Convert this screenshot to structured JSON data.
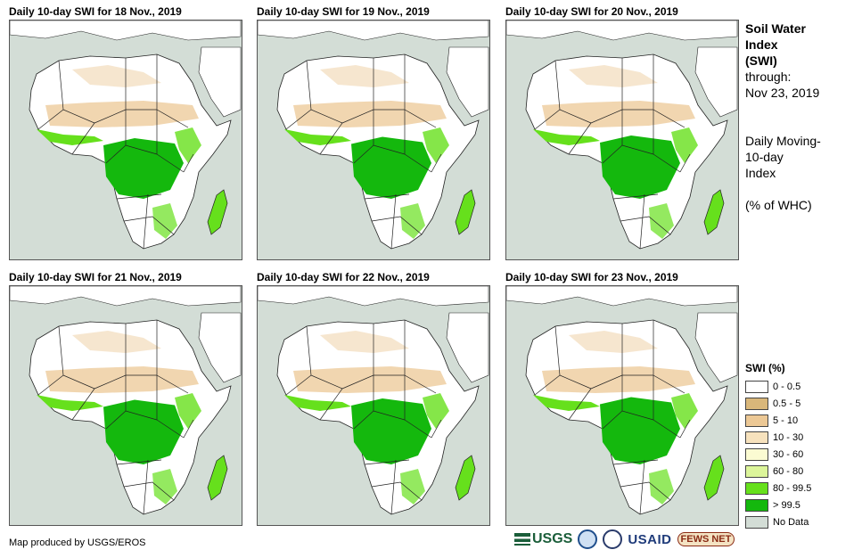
{
  "panels": [
    {
      "title": "Daily 10-day SWI for 18 Nov., 2019"
    },
    {
      "title": "Daily 10-day SWI for 19 Nov., 2019"
    },
    {
      "title": "Daily 10-day SWI for 20 Nov., 2019"
    },
    {
      "title": "Daily 10-day SWI for 21 Nov., 2019"
    },
    {
      "title": "Daily 10-day SWI for 22 Nov., 2019"
    },
    {
      "title": "Daily 10-day SWI for 23 Nov., 2019"
    }
  ],
  "side": {
    "title_line1": "Soil Water",
    "title_line2": "Index",
    "title_line3": "(SWI)",
    "through_label": "through:",
    "through_date": "Nov 23, 2019",
    "desc_line1": "Daily Moving-",
    "desc_line2": "10-day",
    "desc_line3": "Index",
    "units": "(% of WHC)"
  },
  "legend": {
    "title": "SWI (%)",
    "items": [
      {
        "label": "0 - 0.5",
        "color": "#ffffff"
      },
      {
        "label": "0.5 - 5",
        "color": "#d9b77a"
      },
      {
        "label": "5 - 10",
        "color": "#ecc895"
      },
      {
        "label": "10 - 30",
        "color": "#f7e2bd"
      },
      {
        "label": "30 - 60",
        "color": "#fbfbd2"
      },
      {
        "label": "60 - 80",
        "color": "#dcf59a"
      },
      {
        "label": "80 - 99.5",
        "color": "#66e01c"
      },
      {
        "label": "> 99.5",
        "color": "#14b80d"
      },
      {
        "label": "No Data",
        "color": "#d3ddd6"
      }
    ]
  },
  "credit": "Map produced by USGS/EROS",
  "logos": {
    "usgs": "USGS",
    "usaid": "USAID",
    "fews": "FEWS NET"
  },
  "colors": {
    "ocean": "#d3ddd6",
    "land": "#ffffff",
    "dry": "#ecc895",
    "wet": "#66e01c",
    "saturated": "#14b80d",
    "border": "#222222"
  }
}
